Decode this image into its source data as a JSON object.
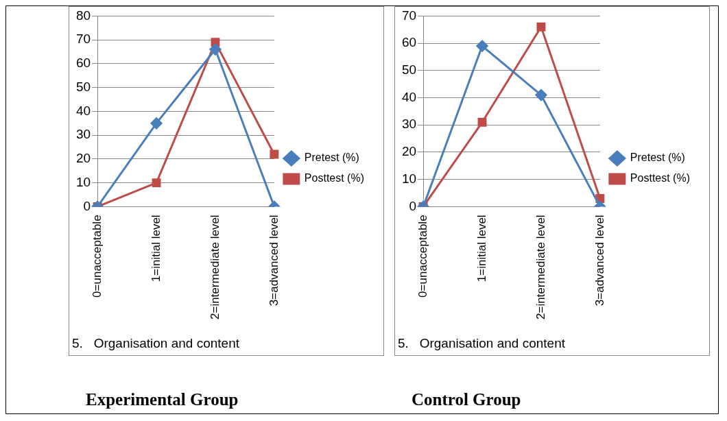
{
  "chart_data": [
    {
      "type": "line",
      "title": "Experimental Group",
      "annotations": [
        "5.\tOrganisation and content"
      ],
      "categories": [
        "0=unacceptable",
        "1=initial level",
        "2=intermediate level",
        "3=advanced level"
      ],
      "series": [
        {
          "name": "Pretest (%)",
          "color": "#4a7ebb",
          "marker": "diamond",
          "values": [
            0,
            35,
            66,
            0
          ]
        },
        {
          "name": "Posttest (%)",
          "color": "#be4b48",
          "marker": "square",
          "values": [
            0,
            10,
            69,
            22
          ]
        }
      ],
      "ylim": [
        0,
        80
      ],
      "yticks": [
        0,
        10,
        20,
        30,
        40,
        50,
        60,
        70,
        80
      ],
      "grid": "y",
      "legend": "right",
      "line_style": "solid"
    },
    {
      "type": "line",
      "title": "Control Group",
      "annotations": [
        "5.\tOrganisation and content"
      ],
      "categories": [
        "0=unacceptable",
        "1=initial level",
        "2=intermediate level",
        "3=advanced level"
      ],
      "series": [
        {
          "name": "Pretest (%)",
          "color": "#4a7ebb",
          "marker": "diamond",
          "values": [
            0,
            59,
            41,
            0
          ]
        },
        {
          "name": "Posttest (%)",
          "color": "#be4b48",
          "marker": "square",
          "values": [
            0,
            31,
            66,
            3
          ]
        }
      ],
      "ylim": [
        0,
        70
      ],
      "yticks": [
        0,
        10,
        20,
        30,
        40,
        50,
        60,
        70
      ],
      "grid": "y",
      "legend": "right",
      "line_style": "solid"
    }
  ]
}
